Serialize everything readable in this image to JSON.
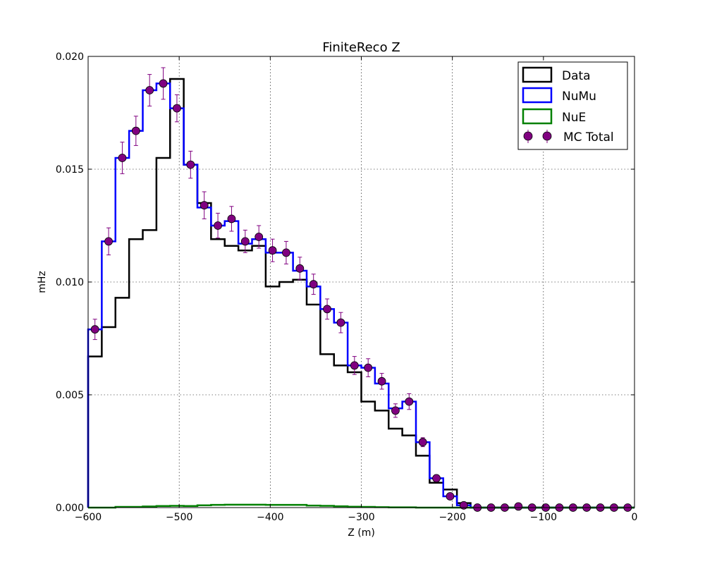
{
  "chart_data": {
    "type": "step",
    "title": "FiniteReco Z",
    "xlabel": "Z (m)",
    "ylabel": "mHz",
    "xlim": [
      -600,
      0
    ],
    "ylim": [
      0,
      0.02
    ],
    "xticks": [
      -600,
      -500,
      -400,
      -300,
      -200,
      -100,
      0
    ],
    "xtick_labels": [
      "−600",
      "−500",
      "−400",
      "−300",
      "−200",
      "−100",
      "0"
    ],
    "yticks": [
      0,
      0.005,
      0.01,
      0.015,
      0.02
    ],
    "ytick_labels": [
      "0.000",
      "0.005",
      "0.010",
      "0.015",
      "0.020"
    ],
    "grid": true,
    "legend_position": "top-right",
    "bin_edges": [
      -600,
      -585,
      -570,
      -555,
      -540,
      -525,
      -510,
      -495,
      -480,
      -465,
      -450,
      -435,
      -420,
      -405,
      -390,
      -375,
      -360,
      -345,
      -330,
      -315,
      -300,
      -285,
      -270,
      -255,
      -240,
      -225,
      -210,
      -195,
      -180,
      -165,
      -150,
      -135,
      -120,
      -105,
      -90,
      -75,
      -60,
      -45,
      -30,
      -15,
      0
    ],
    "series": [
      {
        "name": "Data",
        "style": "step",
        "color": "#000000",
        "values": [
          0.0067,
          0.008,
          0.0093,
          0.0119,
          0.0123,
          0.0155,
          0.019,
          0.0152,
          0.0135,
          0.0119,
          0.0116,
          0.0114,
          0.0116,
          0.0098,
          0.01,
          0.0101,
          0.009,
          0.0068,
          0.0063,
          0.006,
          0.0047,
          0.0043,
          0.0035,
          0.0032,
          0.0023,
          0.0011,
          0.0008,
          0.0002,
          0,
          0,
          0,
          0,
          0,
          0,
          0,
          0,
          0,
          0,
          0,
          0
        ]
      },
      {
        "name": "NuMu",
        "style": "step",
        "color": "#0000ff",
        "values": [
          0.0079,
          0.0118,
          0.0155,
          0.0167,
          0.0185,
          0.0188,
          0.0177,
          0.0152,
          0.0133,
          0.0125,
          0.0127,
          0.0117,
          0.0119,
          0.0113,
          0.0113,
          0.0105,
          0.0098,
          0.0088,
          0.0082,
          0.0063,
          0.0062,
          0.0055,
          0.0044,
          0.0047,
          0.0029,
          0.0013,
          0.0005,
          0.0001,
          0,
          0,
          0,
          0,
          0,
          0,
          0,
          0,
          0,
          0,
          0,
          0
        ]
      },
      {
        "name": "NuE",
        "style": "step",
        "color": "#008000",
        "values": [
          0,
          0,
          3e-05,
          3e-05,
          5e-05,
          7e-05,
          8e-05,
          7e-05,
          0.0001,
          0.00012,
          0.00013,
          0.00013,
          0.00013,
          0.00012,
          0.00012,
          0.00012,
          9e-05,
          8e-05,
          6e-05,
          4e-05,
          3e-05,
          2e-05,
          1e-05,
          1e-05,
          0,
          0,
          0,
          0,
          0,
          0,
          0,
          0,
          0,
          0,
          0,
          0,
          0,
          0,
          0,
          0
        ]
      },
      {
        "name": "MC Total",
        "style": "points_errorbars",
        "color": "#800080",
        "x": [
          -592.5,
          -577.5,
          -562.5,
          -547.5,
          -532.5,
          -517.5,
          -502.5,
          -487.5,
          -472.5,
          -457.5,
          -442.5,
          -427.5,
          -412.5,
          -397.5,
          -382.5,
          -367.5,
          -352.5,
          -337.5,
          -322.5,
          -307.5,
          -292.5,
          -277.5,
          -262.5,
          -247.5,
          -232.5,
          -217.5,
          -202.5,
          -187.5,
          -172.5,
          -157.5,
          -142.5,
          -127.5,
          -112.5,
          -97.5,
          -82.5,
          -67.5,
          -52.5,
          -37.5,
          -22.5,
          -7.5
        ],
        "values": [
          0.0079,
          0.0118,
          0.0155,
          0.0167,
          0.0185,
          0.0188,
          0.0177,
          0.0152,
          0.0134,
          0.0125,
          0.0128,
          0.0118,
          0.012,
          0.0114,
          0.0113,
          0.0106,
          0.0099,
          0.0088,
          0.0082,
          0.0063,
          0.0062,
          0.0056,
          0.0043,
          0.0047,
          0.0029,
          0.0013,
          0.0005,
          0.0001,
          0.0,
          0.0,
          0.0,
          5e-05,
          0.0,
          0.0,
          0.0,
          0.0,
          0.0,
          0.0,
          0.0,
          0.0
        ],
        "errors": [
          0.00045,
          0.0006,
          0.0007,
          0.00065,
          0.0007,
          0.0007,
          0.0006,
          0.0006,
          0.0006,
          0.00055,
          0.00055,
          0.0005,
          0.0005,
          0.0005,
          0.0005,
          0.0005,
          0.00045,
          0.00045,
          0.00045,
          0.0004,
          0.0004,
          0.00035,
          0.0003,
          0.00035,
          0.0002,
          0.00015,
          0.0001,
          5e-05,
          2e-05,
          2e-05,
          2e-05,
          3e-05,
          2e-05,
          2e-05,
          2e-05,
          2e-05,
          2e-05,
          2e-05,
          2e-05,
          2e-05
        ]
      }
    ]
  }
}
